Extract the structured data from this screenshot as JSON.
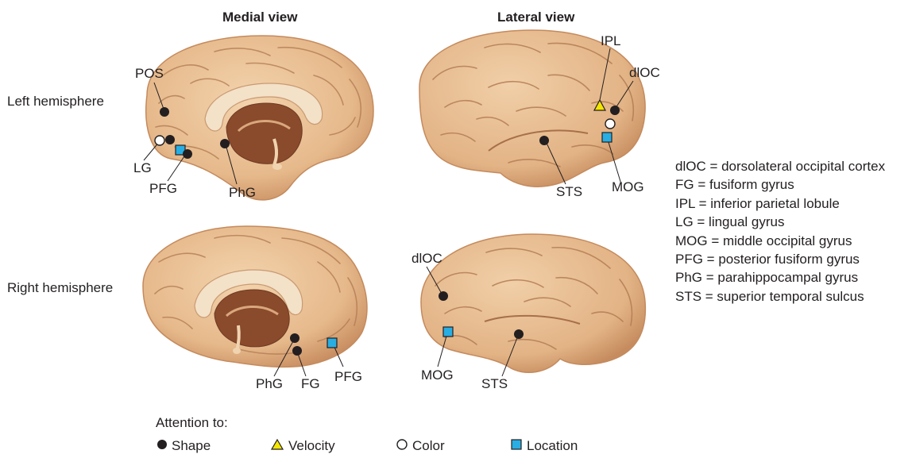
{
  "headers": {
    "medial": "Medial view",
    "lateral": "Lateral view"
  },
  "rows": {
    "left": "Left hemisphere",
    "right": "Right hemisphere"
  },
  "labels": {
    "lh_medial": {
      "pos": "POS",
      "lg": "LG",
      "pfg": "PFG",
      "phg": "PhG"
    },
    "lh_lateral": {
      "ipl": "IPL",
      "dloc": "dlOC",
      "sts": "STS",
      "mog": "MOG"
    },
    "rh_medial": {
      "phg": "PhG",
      "fg": "FG",
      "pfg": "PFG"
    },
    "rh_lateral": {
      "dloc": "dlOC",
      "mog": "MOG",
      "sts": "STS"
    }
  },
  "abbreviations": [
    "dlOC = dorsolateral occipital cortex",
    "FG = fusiform gyrus",
    "IPL = inferior parietal lobule",
    "LG = lingual gyrus",
    "MOG = middle occipital gyrus",
    "PFG = posterior fusiform gyrus",
    "PhG = parahippocampal gyrus",
    "STS = superior temporal sulcus"
  ],
  "legend": {
    "title": "Attention to:",
    "items": [
      {
        "marker": "filled-circle",
        "label": "Shape"
      },
      {
        "marker": "yellow-triangle",
        "label": "Velocity"
      },
      {
        "marker": "open-circle",
        "label": "Color"
      },
      {
        "marker": "blue-square",
        "label": "Location"
      }
    ]
  },
  "colors": {
    "brain_fill": "#e9bf93",
    "brain_shadow": "#c98f62",
    "gyri_line": "#b07a52",
    "callosum": "#f3e1c8",
    "ventricle": "#8a4a2c",
    "shape_marker": "#231f20",
    "velocity_marker": "#f3e600",
    "location_marker": "#29aee3"
  }
}
